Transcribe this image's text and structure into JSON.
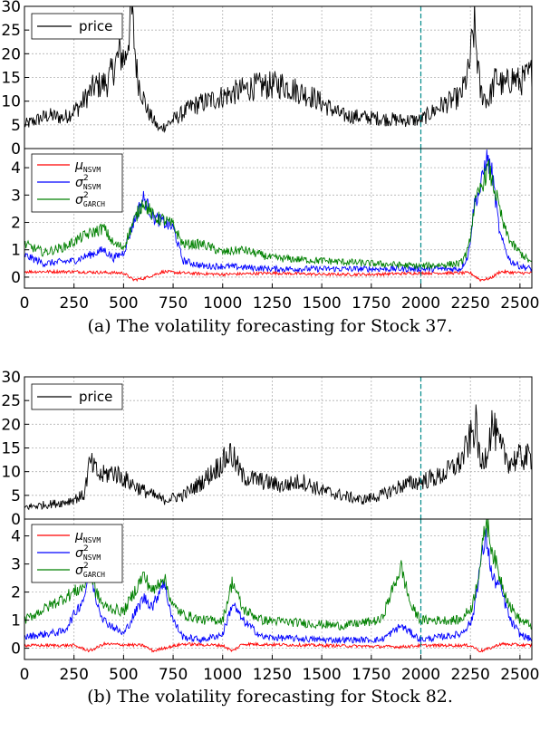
{
  "captions": {
    "a": "(a) The volatility forecasting for Stock 37.",
    "b": "(b) The volatility forecasting for Stock 82."
  },
  "colors": {
    "price": "#000000",
    "mu": "#ff0000",
    "sigma_nsvm": "#0000ff",
    "sigma_garch": "#008000",
    "split_line": "#008b8b",
    "grid": "#b0b0b0"
  },
  "chart_data": [
    {
      "id": "stock37-price",
      "type": "line",
      "xlim": [
        0,
        2560
      ],
      "ylim": [
        0,
        30
      ],
      "xticks": [
        0,
        250,
        500,
        750,
        1000,
        1250,
        1500,
        1750,
        2000,
        2250,
        2500
      ],
      "yticks": [
        0,
        5,
        10,
        15,
        20,
        25,
        30
      ],
      "grid": true,
      "legend": "top-left",
      "split_x": 2000,
      "series": [
        {
          "name": "price",
          "color": "#000000",
          "x": [
            0,
            60,
            120,
            200,
            280,
            350,
            420,
            480,
            510,
            540,
            570,
            620,
            680,
            750,
            850,
            1000,
            1150,
            1300,
            1450,
            1600,
            1750,
            1900,
            2000,
            2100,
            2200,
            2240,
            2270,
            2300,
            2340,
            2380,
            2420,
            2460,
            2500,
            2560
          ],
          "y": [
            5,
            6,
            7,
            6.5,
            9,
            13,
            14,
            20,
            19,
            29,
            15,
            8,
            4,
            6,
            9,
            11,
            13,
            13.5,
            11,
            7,
            6.5,
            6,
            6,
            9,
            11,
            16,
            26,
            12,
            10,
            15,
            13,
            15,
            14,
            16
          ]
        }
      ]
    },
    {
      "id": "stock37-vol",
      "type": "line",
      "xlim": [
        0,
        2560
      ],
      "ylim": [
        -0.4,
        4.7
      ],
      "xticks": [
        0,
        250,
        500,
        750,
        1000,
        1250,
        1500,
        1750,
        2000,
        2250,
        2500
      ],
      "yticks": [
        0,
        1,
        2,
        3,
        4
      ],
      "grid": true,
      "legend": "top-left",
      "split_x": 2000,
      "series": [
        {
          "name": "μNSVM",
          "color": "#ff0000",
          "x": [
            0,
            250,
            500,
            550,
            600,
            700,
            800,
            1000,
            1250,
            1500,
            1750,
            2000,
            2250,
            2300,
            2350,
            2400,
            2500,
            2560
          ],
          "y": [
            0.2,
            0.2,
            0.15,
            -0.1,
            -0.05,
            0.2,
            0.15,
            0.1,
            0.15,
            0.1,
            0.1,
            0.15,
            0.15,
            -0.1,
            -0.05,
            0.2,
            0.15,
            0.15
          ]
        },
        {
          "name": "σ2NSVM",
          "color": "#0000ff",
          "x": [
            0,
            100,
            250,
            400,
            450,
            500,
            550,
            600,
            650,
            700,
            750,
            800,
            900,
            1000,
            1250,
            1500,
            1750,
            2000,
            2200,
            2240,
            2270,
            2300,
            2330,
            2360,
            2400,
            2450,
            2500,
            2560
          ],
          "y": [
            0.8,
            0.5,
            0.6,
            1.0,
            0.7,
            0.9,
            2.0,
            2.9,
            2.2,
            2.0,
            1.8,
            0.6,
            0.4,
            0.4,
            0.3,
            0.3,
            0.3,
            0.3,
            0.3,
            0.8,
            2.7,
            3.2,
            4.4,
            3.8,
            1.5,
            0.6,
            0.4,
            0.3
          ]
        },
        {
          "name": "σ2GARCH",
          "color": "#008000",
          "x": [
            0,
            100,
            200,
            300,
            400,
            450,
            500,
            550,
            600,
            650,
            700,
            750,
            800,
            900,
            1000,
            1100,
            1250,
            1500,
            1750,
            2000,
            2200,
            2240,
            2270,
            2300,
            2340,
            2380,
            2420,
            2460,
            2500,
            2560
          ],
          "y": [
            1.2,
            0.9,
            1.1,
            1.5,
            1.8,
            1.2,
            1.1,
            2.0,
            2.8,
            2.2,
            2.1,
            1.9,
            1.2,
            1.2,
            0.9,
            1.0,
            0.7,
            0.6,
            0.5,
            0.4,
            0.5,
            1.0,
            2.6,
            3.2,
            4.0,
            3.0,
            1.8,
            1.2,
            0.9,
            0.5
          ]
        }
      ]
    },
    {
      "id": "stock82-price",
      "type": "line",
      "xlim": [
        0,
        2560
      ],
      "ylim": [
        0,
        30
      ],
      "xticks": [
        0,
        250,
        500,
        750,
        1000,
        1250,
        1500,
        1750,
        2000,
        2250,
        2500
      ],
      "yticks": [
        0,
        5,
        10,
        15,
        20,
        25,
        30
      ],
      "grid": true,
      "legend": "top-left",
      "split_x": 2000,
      "series": [
        {
          "name": "price",
          "color": "#000000",
          "x": [
            0,
            100,
            200,
            300,
            330,
            380,
            450,
            520,
            600,
            700,
            800,
            900,
            1000,
            1040,
            1100,
            1200,
            1300,
            1400,
            1500,
            1600,
            1700,
            1800,
            1900,
            2000,
            2100,
            2200,
            2250,
            2280,
            2300,
            2330,
            2360,
            2400,
            2450,
            2500,
            2560
          ],
          "y": [
            2.5,
            3,
            3.5,
            5,
            12,
            9,
            10,
            8,
            6,
            4,
            5,
            8,
            12,
            14,
            9,
            8,
            7,
            8,
            6,
            5,
            4,
            5,
            7,
            8,
            9,
            12,
            17,
            20,
            11,
            14,
            20,
            15,
            12,
            13,
            13
          ]
        }
      ]
    },
    {
      "id": "stock82-vol",
      "type": "line",
      "xlim": [
        0,
        2560
      ],
      "ylim": [
        -0.4,
        4.6
      ],
      "xticks": [
        0,
        250,
        500,
        750,
        1000,
        1250,
        1500,
        1750,
        2000,
        2250,
        2500
      ],
      "yticks": [
        0,
        1,
        2,
        3,
        4
      ],
      "grid": true,
      "legend": "top-left",
      "split_x": 2000,
      "series": [
        {
          "name": "μNSVM",
          "color": "#ff0000",
          "x": [
            0,
            250,
            330,
            400,
            600,
            650,
            700,
            800,
            1000,
            1050,
            1100,
            1500,
            1900,
            2000,
            2250,
            2300,
            2350,
            2400,
            2560
          ],
          "y": [
            0.1,
            0.1,
            -0.1,
            0.15,
            0.1,
            -0.1,
            0.0,
            0.15,
            0.1,
            -0.1,
            0.15,
            0.1,
            0.05,
            0.1,
            0.1,
            -0.1,
            0.0,
            0.15,
            0.1
          ]
        },
        {
          "name": "σ2NSVM",
          "color": "#0000ff",
          "x": [
            0,
            200,
            300,
            330,
            360,
            400,
            500,
            600,
            650,
            700,
            750,
            800,
            900,
            1000,
            1050,
            1100,
            1200,
            1500,
            1800,
            1900,
            2000,
            2200,
            2260,
            2300,
            2330,
            2360,
            2400,
            2450,
            2500,
            2560
          ],
          "y": [
            0.4,
            0.6,
            1.8,
            2.8,
            1.8,
            1.0,
            0.5,
            1.8,
            1.5,
            2.4,
            1.0,
            0.4,
            0.3,
            0.5,
            1.6,
            1.0,
            0.4,
            0.3,
            0.3,
            0.8,
            0.3,
            0.5,
            1.0,
            3.0,
            4.0,
            2.5,
            2.2,
            1.0,
            0.5,
            0.3
          ]
        },
        {
          "name": "σ2GARCH",
          "color": "#008000",
          "x": [
            0,
            100,
            200,
            300,
            330,
            360,
            400,
            500,
            600,
            650,
            700,
            750,
            800,
            900,
            1000,
            1050,
            1100,
            1200,
            1400,
            1600,
            1800,
            1900,
            1950,
            2000,
            2200,
            2260,
            2300,
            2330,
            2360,
            2400,
            2450,
            2500,
            2560
          ],
          "y": [
            1.0,
            1.4,
            1.8,
            2.2,
            2.8,
            2.0,
            1.5,
            1.3,
            2.6,
            2.0,
            2.6,
            1.5,
            1.2,
            1.0,
            1.0,
            2.4,
            1.4,
            1.0,
            0.9,
            0.8,
            1.0,
            2.9,
            1.5,
            1.0,
            1.0,
            1.5,
            3.0,
            4.6,
            3.5,
            2.5,
            1.5,
            1.0,
            0.8
          ]
        }
      ]
    }
  ]
}
